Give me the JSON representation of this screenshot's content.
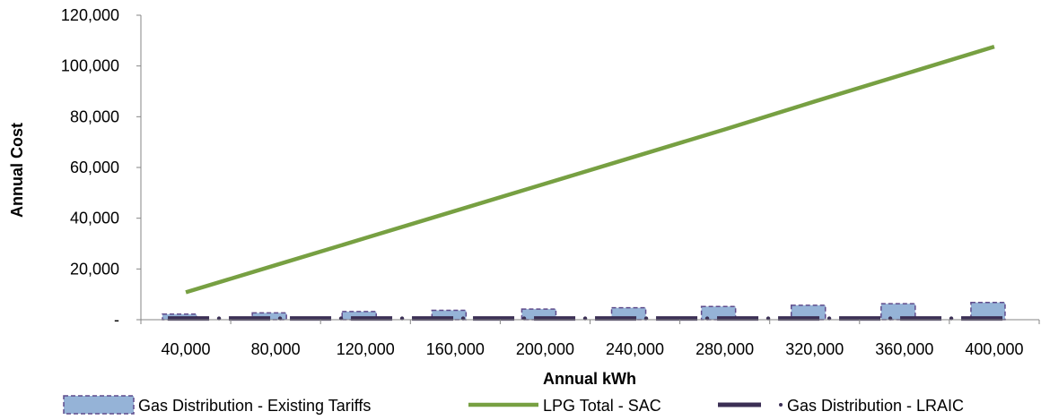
{
  "chart_data": {
    "type": "bar",
    "xlabel": "Annual kWh",
    "ylabel": "Annual Cost",
    "categories": [
      "40,000",
      "80,000",
      "120,000",
      "160,000",
      "200,000",
      "240,000",
      "280,000",
      "320,000",
      "360,000",
      "400,000"
    ],
    "ylim": [
      0,
      120000
    ],
    "ytick_labels": [
      "-",
      "20,000",
      "40,000",
      "60,000",
      "80,000",
      "100,000",
      "120,000"
    ],
    "series": [
      {
        "name": "Gas Distribution - Existing Tariffs",
        "kind": "bar",
        "color": "#95b3d7",
        "border_color": "#5f4b8b",
        "values": [
          2200,
          2700,
          3200,
          3700,
          4200,
          4700,
          5200,
          5700,
          6300,
          6800
        ]
      },
      {
        "name": "LPG Total - SAC",
        "kind": "line",
        "color": "#77a042",
        "values": [
          10800,
          21500,
          32200,
          42900,
          53600,
          64300,
          75000,
          86000,
          96800,
          107600
        ]
      },
      {
        "name": "Gas Distribution - LRAIC",
        "kind": "dash-dot-line",
        "color": "#3b2f55",
        "values": [
          500,
          500,
          500,
          500,
          500,
          500,
          500,
          500,
          500,
          500
        ]
      }
    ],
    "grid": false,
    "legend": "bottom"
  }
}
